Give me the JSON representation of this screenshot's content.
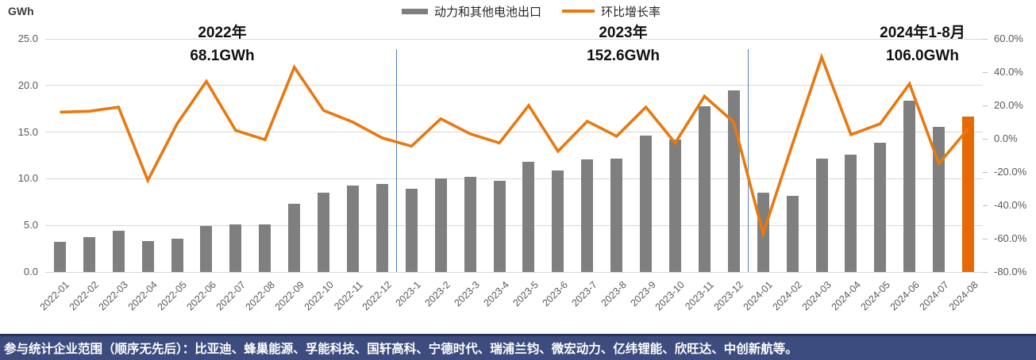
{
  "legend": [
    {
      "label": "动力和其他电池出口",
      "type": "bar",
      "color": "#7f7f7f"
    },
    {
      "label": "环比增长率",
      "type": "line",
      "color": "#e8790f"
    }
  ],
  "annotations": [
    {
      "line1": "2022年",
      "line2": "68.1GWh"
    },
    {
      "line1": "2023年",
      "line2": "152.6GWh"
    },
    {
      "line1": "2024年1-8月",
      "line2": "106.0GWh"
    }
  ],
  "footer": {
    "text": "参与统计企业范围（顺序无先后）：比亚迪、蜂巢能源、孚能科技、国轩高科、宁德时代、瑞浦兰钧、微宏动力、亿纬锂能、欣旺达、中创新航等。"
  },
  "chart_data": {
    "type": "bar",
    "subtype": "combo-bar-line-dual-axis",
    "categories": [
      "2022-01",
      "2022-02",
      "2022-03",
      "2022-04",
      "2022-05",
      "2022-06",
      "2022-07",
      "2022-08",
      "2022-09",
      "2022-10",
      "2022-11",
      "2022-12",
      "2023-1",
      "2023-2",
      "2023-3",
      "2023-4",
      "2023-5",
      "2023-6",
      "2023-7",
      "2023-8",
      "2023-9",
      "2023-10",
      "2023-11",
      "2023-12",
      "2024-01",
      "2024-02",
      "2024-03",
      "2024-04",
      "2024-05",
      "2024-06",
      "2024-07",
      "2024-08"
    ],
    "series": [
      {
        "name": "动力和其他电池出口",
        "type": "bar",
        "unit": "GWh",
        "axis": "left",
        "values": [
          3.2,
          3.7,
          4.4,
          3.3,
          3.6,
          4.9,
          5.1,
          5.1,
          7.3,
          8.5,
          9.3,
          9.4,
          8.9,
          10.0,
          10.2,
          9.8,
          11.8,
          10.9,
          12.1,
          12.2,
          14.6,
          14.2,
          17.8,
          19.5,
          8.5,
          8.2,
          12.2,
          12.6,
          13.9,
          18.4,
          15.6,
          16.7
        ]
      },
      {
        "name": "环比增长率",
        "type": "line",
        "unit": "%",
        "axis": "right",
        "values": [
          16,
          16.5,
          19,
          -25,
          9,
          34.5,
          5,
          -0.5,
          43,
          17,
          10,
          0.5,
          -4.5,
          12,
          3,
          -2.5,
          20,
          -7.5,
          10.5,
          1.5,
          19,
          -2.5,
          25.5,
          10,
          -57,
          -3.5,
          49,
          2.5,
          9,
          33,
          -15,
          6
        ]
      }
    ],
    "year_totals": [
      {
        "period": "2022年",
        "total": "68.1GWh"
      },
      {
        "period": "2023年",
        "total": "152.6GWh"
      },
      {
        "period": "2024年1-8月",
        "total": "106.0GWh"
      }
    ],
    "left_axis": {
      "title": "GWh",
      "min": 0,
      "max": 25,
      "ticks": [
        {
          "label": "25.0",
          "value": 25
        },
        {
          "label": "20.0",
          "value": 20
        },
        {
          "label": "15.0",
          "value": 15
        },
        {
          "label": "10.0",
          "value": 10
        },
        {
          "label": "5.0",
          "value": 5
        },
        {
          "label": "0.0",
          "value": 0
        }
      ]
    },
    "right_axis": {
      "min": -80,
      "max": 60,
      "ticks": [
        {
          "label": "60.0%",
          "value": 60
        },
        {
          "label": "40.0%",
          "value": 40
        },
        {
          "label": "20.0%",
          "value": 20
        },
        {
          "label": "0.0%",
          "value": 0
        },
        {
          "label": "-20.0%",
          "value": -20
        },
        {
          "label": "-40.0%",
          "value": -40
        },
        {
          "label": "-60.0%",
          "value": -60
        },
        {
          "label": "-80.0%",
          "value": -80
        }
      ]
    },
    "grid": "horizontal-only",
    "legend_position": "top-center",
    "bar_color": "#7f7f7f",
    "line_color": "#e8790f",
    "highlight_bar_index": 31,
    "highlight_color": "#e56a05",
    "divider_after_index": [
      11,
      23
    ],
    "divider_color": "#4f80c8"
  }
}
